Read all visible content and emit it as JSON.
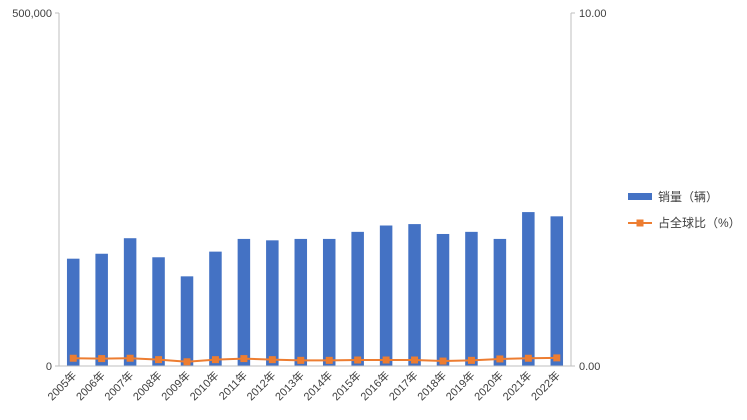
{
  "chart_data": {
    "type": "bar+line",
    "title": "",
    "categories": [
      "2005年",
      "2006年",
      "2007年",
      "2008年",
      "2009年",
      "2010年",
      "2011年",
      "2012年",
      "2013年",
      "2014年",
      "2015年",
      "2016年",
      "2017年",
      "2018年",
      "2019年",
      "2020年",
      "2021年",
      "2022年"
    ],
    "series": [
      {
        "name": "销量（辆）",
        "type": "bar",
        "axis": "left",
        "color": "#4472C4",
        "values": [
          152000,
          159000,
          181000,
          154000,
          127000,
          162000,
          180000,
          178000,
          180000,
          180000,
          190000,
          199000,
          201000,
          187000,
          190000,
          180000,
          218000,
          212000
        ]
      },
      {
        "name": "占全球比（%）",
        "type": "line",
        "axis": "right",
        "color": "#ED7D31",
        "marker": "square",
        "values": [
          0.22,
          0.21,
          0.22,
          0.18,
          0.12,
          0.18,
          0.21,
          0.18,
          0.16,
          0.16,
          0.17,
          0.17,
          0.17,
          0.14,
          0.16,
          0.2,
          0.22,
          0.23
        ]
      }
    ],
    "y_left": {
      "min": 0,
      "max": 500000,
      "ticks": [
        "0",
        "500,000"
      ]
    },
    "y_right": {
      "min": 0,
      "max": 10,
      "ticks": [
        "0.00",
        "10.00"
      ]
    },
    "grid": false,
    "legend_position": "right"
  }
}
